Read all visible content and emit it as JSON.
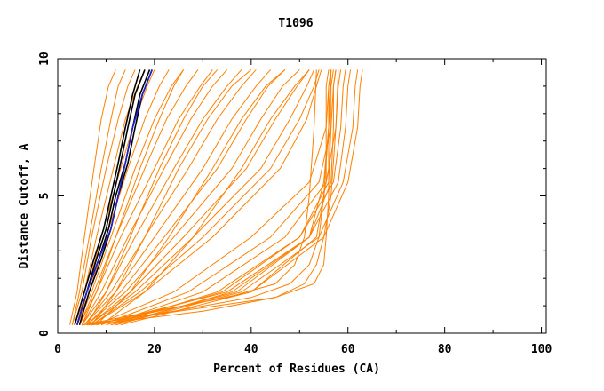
{
  "chart_data": {
    "type": "line",
    "title": "T1096",
    "xlabel": "Percent of Residues (CA)",
    "ylabel": "Distance Cutoff, A",
    "xlim": [
      0,
      101
    ],
    "ylim": [
      0,
      10
    ],
    "xticks": [
      "0",
      "20",
      "40",
      "60",
      "80",
      "100"
    ],
    "yticks": [
      "0",
      "5",
      "10"
    ],
    "grid": false,
    "colors": {
      "orange": "#ff8000",
      "black": "#000000",
      "blue": "#2020d0"
    },
    "series": [
      {
        "color": "orange",
        "x": [
          2.5,
          4,
          5.5,
          7.5,
          9,
          10.5,
          12
        ],
        "y": [
          0.3,
          1.5,
          3.5,
          6,
          7.8,
          9,
          9.6
        ]
      },
      {
        "color": "orange",
        "x": [
          3,
          4.5,
          6.5,
          9,
          11,
          12.5,
          14
        ],
        "y": [
          0.3,
          1.5,
          3.5,
          6,
          7.8,
          9,
          9.6
        ]
      },
      {
        "color": "orange",
        "x": [
          3,
          5,
          7,
          10,
          12.5,
          14.5,
          16
        ],
        "y": [
          0.3,
          1.5,
          3.5,
          6,
          7.8,
          9,
          9.6
        ]
      },
      {
        "color": "orange",
        "x": [
          3.5,
          5.5,
          8,
          11.5,
          14,
          16.5,
          18
        ],
        "y": [
          0.3,
          1.5,
          3.5,
          6,
          7.8,
          9,
          9.6
        ]
      },
      {
        "color": "orange",
        "x": [
          3.5,
          6,
          9,
          13,
          16,
          18.5,
          20
        ],
        "y": [
          0.3,
          1.5,
          3.5,
          6,
          7.8,
          9,
          9.6
        ]
      },
      {
        "color": "orange",
        "x": [
          4,
          6.5,
          10,
          14.5,
          18,
          21,
          23
        ],
        "y": [
          0.3,
          1.5,
          3.5,
          6,
          7.8,
          9,
          9.6
        ]
      },
      {
        "color": "orange",
        "x": [
          4,
          7,
          11,
          16,
          20,
          23.5,
          26
        ],
        "y": [
          0.3,
          1.5,
          3.5,
          6,
          7.8,
          9,
          9.6
        ]
      },
      {
        "color": "orange",
        "x": [
          4.5,
          7.5,
          12,
          18,
          22.5,
          26.5,
          29
        ],
        "y": [
          0.3,
          1.5,
          3.5,
          6,
          7.8,
          9,
          9.6
        ]
      },
      {
        "color": "orange",
        "x": [
          4.5,
          8,
          13,
          20,
          25,
          29.5,
          32
        ],
        "y": [
          0.3,
          1.5,
          3.5,
          6,
          7.8,
          9,
          9.6
        ]
      },
      {
        "color": "orange",
        "x": [
          5,
          9,
          14.5,
          22,
          27.5,
          32,
          35
        ],
        "y": [
          0.3,
          1.5,
          3.5,
          6,
          7.8,
          9,
          9.6
        ]
      },
      {
        "color": "orange",
        "x": [
          5,
          10,
          16,
          24,
          30,
          35,
          38
        ],
        "y": [
          0.3,
          1.5,
          3.5,
          6,
          7.8,
          9,
          9.6
        ]
      },
      {
        "color": "orange",
        "x": [
          5.5,
          11,
          18,
          27,
          33,
          38,
          41
        ],
        "y": [
          0.3,
          1.5,
          3.5,
          6,
          7.8,
          9,
          9.6
        ]
      },
      {
        "color": "orange",
        "x": [
          5.5,
          12,
          20,
          30,
          36,
          41,
          44
        ],
        "y": [
          0.3,
          1.5,
          3.5,
          6,
          7.8,
          9,
          9.6
        ]
      },
      {
        "color": "orange",
        "x": [
          6,
          13,
          22,
          33,
          39,
          43.5,
          47
        ],
        "y": [
          0.3,
          1.5,
          3.5,
          6,
          7.8,
          9,
          9.6
        ]
      },
      {
        "color": "orange",
        "x": [
          6,
          14,
          24,
          36,
          42,
          46.5,
          50
        ],
        "y": [
          0.3,
          1.5,
          3.5,
          6,
          7.8,
          9,
          9.6
        ]
      },
      {
        "color": "orange",
        "x": [
          6.5,
          15,
          26,
          39,
          45,
          49.5,
          52
        ],
        "y": [
          0.3,
          1.5,
          3.5,
          6,
          7.8,
          9,
          9.6
        ]
      },
      {
        "color": "orange",
        "x": [
          6.5,
          16,
          28,
          42,
          48,
          51.5,
          53
        ],
        "y": [
          0.3,
          1.5,
          3.5,
          6,
          7.8,
          9,
          9.6
        ]
      },
      {
        "color": "orange",
        "x": [
          7,
          17,
          30,
          44,
          50,
          53,
          54
        ],
        "y": [
          0.3,
          1.5,
          3.5,
          6,
          7.8,
          9,
          9.6
        ]
      },
      {
        "color": "orange",
        "x": [
          7,
          18,
          32,
          46,
          51.5,
          53.5,
          54.5
        ],
        "y": [
          0.3,
          1.5,
          3.5,
          6,
          7.8,
          9,
          9.6
        ]
      },
      {
        "color": "orange",
        "x": [
          5,
          8,
          12,
          17,
          21,
          24,
          26
        ],
        "y": [
          0.3,
          1.5,
          3.5,
          6,
          7.8,
          9,
          9.6
        ]
      },
      {
        "color": "orange",
        "x": [
          6,
          10,
          15,
          21,
          26,
          30,
          33
        ],
        "y": [
          0.3,
          1.5,
          3.5,
          6,
          7.8,
          9,
          9.6
        ]
      },
      {
        "color": "orange",
        "x": [
          7,
          12,
          18,
          25,
          31,
          36,
          40
        ],
        "y": [
          0.3,
          1.5,
          3.5,
          6,
          7.8,
          9,
          9.6
        ]
      },
      {
        "color": "orange",
        "x": [
          8,
          15,
          23,
          32,
          38,
          43,
          47
        ],
        "y": [
          0.3,
          1.5,
          3.5,
          6,
          7.8,
          9,
          9.6
        ]
      },
      {
        "color": "orange",
        "x": [
          9,
          18,
          28,
          38,
          44,
          49,
          52
        ],
        "y": [
          0.3,
          1.5,
          3.5,
          6,
          7.8,
          9,
          9.6
        ]
      },
      {
        "color": "orange",
        "x": [
          8,
          24,
          40,
          52,
          55.5,
          56,
          56.5
        ],
        "y": [
          0.3,
          1.5,
          3.5,
          5.5,
          7.5,
          9,
          9.6
        ]
      },
      {
        "color": "orange",
        "x": [
          9,
          27,
          44,
          54,
          56.5,
          57,
          57.5
        ],
        "y": [
          0.3,
          1.5,
          3.5,
          5.5,
          7.5,
          9,
          9.6
        ]
      },
      {
        "color": "orange",
        "x": [
          10,
          30,
          47,
          55.5,
          57.5,
          58,
          58.5
        ],
        "y": [
          0.3,
          1.5,
          3.5,
          5.5,
          7.5,
          9,
          9.6
        ]
      },
      {
        "color": "orange",
        "x": [
          11,
          33,
          50,
          57,
          58.5,
          59,
          59.5
        ],
        "y": [
          0.3,
          1.5,
          3.5,
          5.5,
          7.5,
          9,
          9.6
        ]
      },
      {
        "color": "orange",
        "x": [
          12,
          36,
          52,
          58,
          59.5,
          60,
          60.5
        ],
        "y": [
          0.3,
          1.5,
          3.5,
          5.5,
          7.5,
          9,
          9.6
        ]
      },
      {
        "color": "orange",
        "x": [
          10,
          34,
          50,
          56,
          56.5,
          56.5,
          57
        ],
        "y": [
          0.3,
          1.5,
          3.5,
          5.5,
          7.5,
          9,
          9.6
        ]
      },
      {
        "color": "orange",
        "x": [
          11,
          37,
          52,
          56.5,
          57,
          57,
          57.5
        ],
        "y": [
          0.3,
          1.5,
          3.5,
          5.5,
          7.5,
          9,
          9.6
        ]
      },
      {
        "color": "orange",
        "x": [
          8,
          35,
          52,
          55,
          56,
          56,
          56.5
        ],
        "y": [
          0.3,
          1.5,
          3.5,
          5.5,
          7.5,
          9,
          9.6
        ]
      },
      {
        "color": "orange",
        "x": [
          7,
          40,
          53.5,
          55.5,
          55.5,
          55.5,
          56
        ],
        "y": [
          0.3,
          1.5,
          3.5,
          5.5,
          7.5,
          9,
          9.6
        ]
      },
      {
        "color": "orange",
        "x": [
          12,
          38,
          54,
          59,
          61,
          61.5,
          62
        ],
        "y": [
          0.3,
          1.5,
          3.5,
          5.5,
          7.5,
          9,
          9.6
        ]
      },
      {
        "color": "orange",
        "x": [
          13,
          40,
          55,
          60,
          62,
          62.5,
          63
        ],
        "y": [
          0.3,
          1.5,
          3.5,
          5.5,
          7.5,
          9,
          9.6
        ]
      },
      {
        "color": "orange",
        "x": [
          5,
          25,
          45,
          53,
          55,
          55.5,
          56,
          56,
          56.5
        ],
        "y": [
          0.3,
          0.8,
          1.3,
          1.8,
          2.5,
          3.5,
          5,
          7.5,
          9.6
        ]
      },
      {
        "color": "orange",
        "x": [
          6,
          24,
          40,
          48,
          52,
          54,
          55,
          56,
          56.5
        ],
        "y": [
          0.3,
          0.8,
          1.3,
          1.8,
          2.5,
          3.5,
          5,
          7.5,
          9.6
        ]
      },
      {
        "color": "orange",
        "x": [
          5,
          20,
          35,
          45,
          49,
          51,
          52,
          53,
          53.5
        ],
        "y": [
          0.3,
          0.8,
          1.3,
          1.8,
          2.5,
          3.5,
          5,
          7.5,
          9.6
        ]
      },
      {
        "color": "orange",
        "x": [
          7,
          30,
          45,
          51,
          53.5,
          55,
          56.5,
          57.5,
          58
        ],
        "y": [
          0.3,
          0.8,
          1.3,
          1.8,
          2.5,
          3.5,
          5,
          7.5,
          9.6
        ]
      },
      {
        "color": "black",
        "x": [
          3.5,
          5.5,
          7.5,
          9.5,
          11,
          12.5,
          14,
          15.5,
          17
        ],
        "y": [
          0.3,
          1.5,
          2.7,
          3.8,
          5,
          6.2,
          7.5,
          8.7,
          9.6
        ]
      },
      {
        "color": "black",
        "x": [
          4,
          6,
          8,
          10,
          11.5,
          13,
          14.5,
          16,
          18
        ],
        "y": [
          0.3,
          1.5,
          2.7,
          3.8,
          5,
          6.2,
          7.5,
          8.7,
          9.6
        ]
      },
      {
        "color": "black",
        "x": [
          4,
          6,
          8.5,
          10.5,
          12,
          14,
          15.5,
          17,
          19
        ],
        "y": [
          0.3,
          1.5,
          2.7,
          3.8,
          5,
          6.2,
          7.5,
          8.7,
          9.6
        ]
      },
      {
        "color": "black",
        "x": [
          4.5,
          6.5,
          9,
          11,
          12.5,
          14.5,
          16,
          17.5,
          19.5
        ],
        "y": [
          0.3,
          1.5,
          2.7,
          3.8,
          5,
          6.2,
          7.5,
          8.7,
          9.6
        ]
      },
      {
        "color": "blue",
        "x": [
          4,
          6,
          8.5,
          11,
          12.5,
          14,
          15.5,
          17.5,
          19.5
        ],
        "y": [
          0.3,
          1.5,
          2.7,
          3.8,
          5,
          6.2,
          7.5,
          8.7,
          9.6
        ]
      }
    ]
  }
}
